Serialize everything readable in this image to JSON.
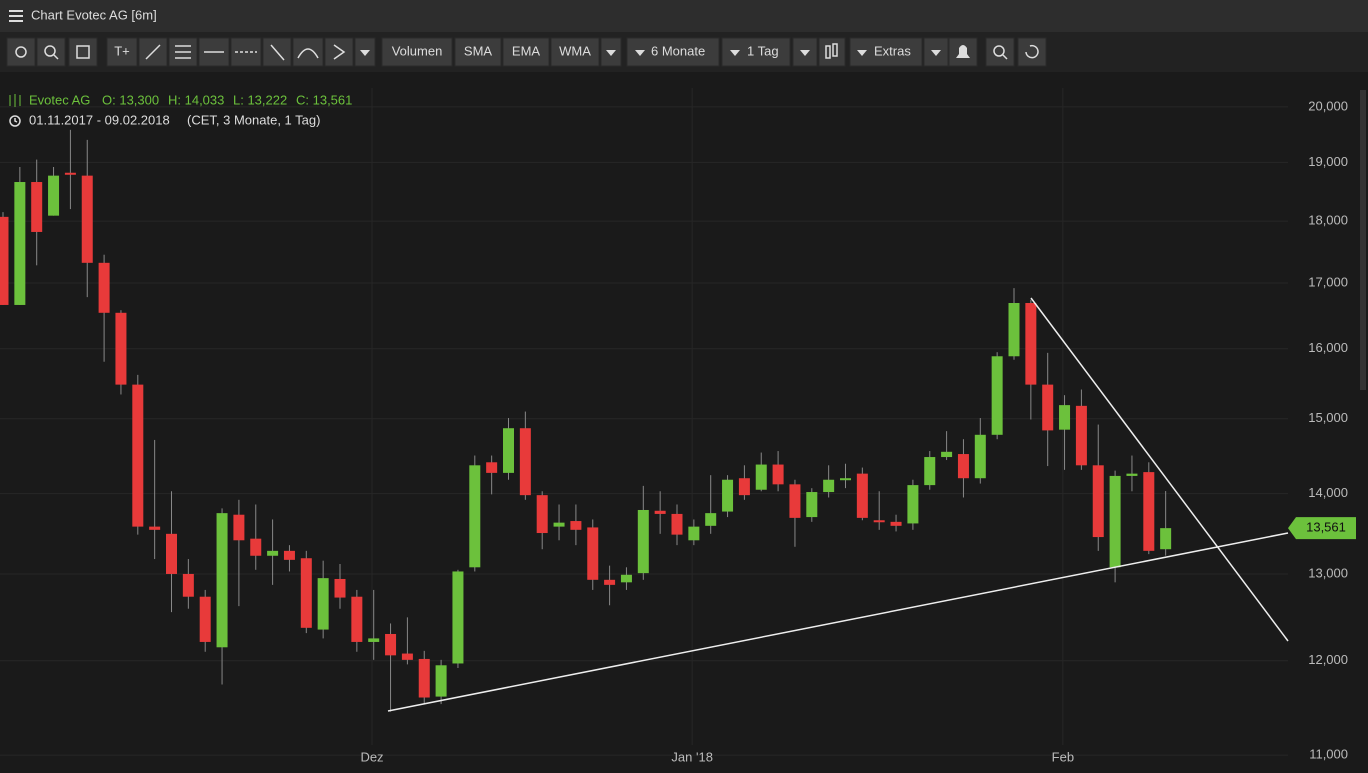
{
  "window": {
    "title": "Chart Evotec AG [6m]"
  },
  "toolbar": {
    "text_tool": "T+",
    "buttons": [
      "Volumen",
      "SMA",
      "EMA",
      "WMA"
    ],
    "period": "6 Monate",
    "interval": "1 Tag",
    "extras": "Extras"
  },
  "header": {
    "ohlc": [
      "O: 13,300",
      "H: 14,033",
      "L: 13,222",
      "C: 13,561"
    ],
    "range": "01.11.2017 - 09.02.2018",
    "range_info": "(CET, 3 Monate, 1 Tag)"
  },
  "chart_data": {
    "type": "candlestick",
    "log_scale": true,
    "grid": true,
    "up_color": "#6cc13c",
    "down_color": "#e83a3a",
    "categories": [
      null,
      null,
      null,
      null,
      null,
      null,
      null,
      null,
      null,
      null,
      null,
      null,
      null,
      null,
      null,
      null,
      null,
      null,
      null,
      null,
      null,
      null,
      null,
      null,
      null,
      null,
      null,
      null,
      null,
      null,
      null,
      null,
      null,
      null,
      null,
      null,
      null,
      null,
      null,
      null,
      null,
      null,
      null,
      null,
      null,
      null,
      null,
      null,
      null,
      null,
      null,
      null,
      null,
      null,
      null,
      null,
      null,
      null,
      null,
      null,
      null,
      null,
      null,
      null,
      null,
      null,
      null,
      null,
      null,
      null
    ],
    "series": [
      {
        "name": "Evotec AG",
        "open": [
          18070,
          16660,
          18660,
          18090,
          18820,
          18770,
          17320,
          16540,
          15480,
          13580,
          13490,
          13000,
          12730,
          12150,
          13730,
          13430,
          13220,
          13280,
          13190,
          12350,
          12940,
          12730,
          12210,
          12300,
          12080,
          12020,
          11610,
          11970,
          13080,
          14410,
          14270,
          14870,
          13980,
          13580,
          13650,
          13570,
          12930,
          12900,
          13010,
          13780,
          13740,
          13410,
          13590,
          13770,
          14200,
          14050,
          14380,
          14120,
          13700,
          14020,
          14180,
          14260,
          13660,
          13640,
          13620,
          14110,
          14480,
          14520,
          14200,
          14780,
          15890,
          16690,
          15480,
          14850,
          15180,
          14370,
          13080,
          14230,
          14280,
          13300
        ],
        "high": [
          18150,
          18920,
          19050,
          18920,
          19580,
          19400,
          17450,
          16580,
          15620,
          14710,
          14030,
          13180,
          12810,
          13810,
          13920,
          13860,
          13670,
          13350,
          13280,
          13160,
          13120,
          12810,
          12810,
          12420,
          12490,
          12110,
          12010,
          13050,
          14500,
          14500,
          15010,
          15100,
          14030,
          13860,
          13860,
          13670,
          13100,
          13080,
          14100,
          14030,
          13860,
          13670,
          14240,
          14240,
          14370,
          14540,
          14560,
          14180,
          14070,
          14370,
          14390,
          14340,
          14030,
          13730,
          14180,
          14560,
          14830,
          14720,
          15010,
          15950,
          16920,
          16740,
          15940,
          15330,
          15410,
          14920,
          14300,
          14500,
          14410,
          14033
        ],
        "low": [
          16660,
          16660,
          17280,
          18090,
          18200,
          16780,
          15810,
          15340,
          13480,
          13180,
          12550,
          12590,
          12100,
          11740,
          12620,
          13050,
          12870,
          13030,
          12310,
          12250,
          12590,
          12100,
          12010,
          11450,
          11960,
          11530,
          11530,
          11920,
          13030,
          13990,
          14180,
          13920,
          13300,
          13410,
          13350,
          12810,
          12630,
          12810,
          12930,
          13490,
          13350,
          13350,
          13490,
          13700,
          13920,
          14030,
          14030,
          13330,
          13640,
          13950,
          14070,
          13660,
          13540,
          13520,
          13540,
          14050,
          14440,
          13950,
          14130,
          14720,
          15840,
          14990,
          14360,
          14310,
          14310,
          13280,
          12900,
          14030,
          13240,
          13222
        ],
        "close": [
          16660,
          18660,
          17820,
          18770,
          18800,
          17320,
          16540,
          15480,
          13580,
          13540,
          13000,
          12730,
          12210,
          13750,
          13410,
          13220,
          13280,
          13170,
          12370,
          12950,
          12720,
          12210,
          12250,
          12060,
          12010,
          11600,
          11950,
          13030,
          14370,
          14270,
          14870,
          13980,
          13500,
          13630,
          13540,
          12930,
          12870,
          12990,
          13790,
          13740,
          13480,
          13580,
          13750,
          14180,
          13980,
          14380,
          14120,
          13690,
          14020,
          14180,
          14200,
          13690,
          13640,
          13590,
          14110,
          14480,
          14550,
          14200,
          14780,
          15890,
          16690,
          15480,
          14840,
          15190,
          14370,
          13450,
          14230,
          14260,
          13280,
          13561
        ]
      }
    ],
    "ylim": [
      10850,
      20350
    ],
    "yticks": [
      {
        "value": 11000,
        "label": "11,000"
      },
      {
        "value": 12000,
        "label": "12,000"
      },
      {
        "value": 13000,
        "label": "13,000"
      },
      {
        "value": 14000,
        "label": "14,000"
      },
      {
        "value": 15000,
        "label": "15,000"
      },
      {
        "value": 16000,
        "label": "16,000"
      },
      {
        "value": 17000,
        "label": "17,000"
      },
      {
        "value": 18000,
        "label": "18,000"
      },
      {
        "value": 19000,
        "label": "19,000"
      },
      {
        "value": 20000,
        "label": "20,000"
      }
    ],
    "xticks": [
      {
        "value": 21.9,
        "label": "Dez"
      },
      {
        "value": 40.9,
        "label": "Jan '18"
      },
      {
        "value": 62.9,
        "label": "Feb"
      }
    ],
    "price_label": {
      "value": 13561,
      "label": "13,561"
    }
  }
}
